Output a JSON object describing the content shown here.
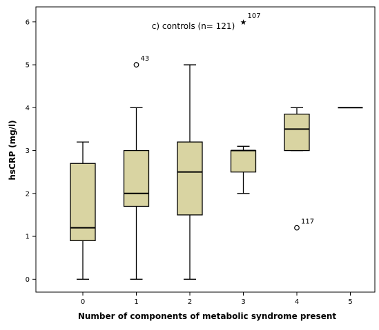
{
  "chart_data": {
    "type": "box",
    "title": "c) controls (n= 121)",
    "xlabel": "Number of components of metabolic syndrome present",
    "ylabel": "hsCRP (mg/l)",
    "categories": [
      "0",
      "1",
      "2",
      "3",
      "4",
      "5"
    ],
    "ylim": [
      -0.3,
      6.35
    ],
    "yticks": [
      0,
      1,
      2,
      3,
      4,
      5,
      6
    ],
    "ytick_labels": [
      "0",
      "1",
      "2",
      "3",
      "4",
      "5",
      "6"
    ],
    "grid": false,
    "box_color": "#d9d4a2",
    "boxes": [
      {
        "category": "0",
        "min": 0,
        "q1": 0.9,
        "median": 1.2,
        "q3": 2.7,
        "max": 3.2
      },
      {
        "category": "1",
        "min": 0,
        "q1": 1.7,
        "median": 2.0,
        "q3": 3.0,
        "max": 4.0
      },
      {
        "category": "2",
        "min": 0,
        "q1": 1.5,
        "median": 2.5,
        "q3": 3.2,
        "max": 5.0
      },
      {
        "category": "3",
        "min": 2.0,
        "q1": 2.5,
        "median": 3.0,
        "q3": 3.0,
        "max": 3.1
      },
      {
        "category": "4",
        "min": 3.0,
        "q1": 3.0,
        "median": 3.5,
        "q3": 3.85,
        "max": 4.0
      },
      {
        "category": "5",
        "min": 4.0,
        "q1": 4.0,
        "median": 4.0,
        "q3": 4.0,
        "max": 4.0
      }
    ],
    "outliers": [
      {
        "category": "1",
        "y": 5.0,
        "label": "43",
        "marker": "circle"
      },
      {
        "category": "3",
        "y": 6.0,
        "label": "107",
        "marker": "star"
      },
      {
        "category": "4",
        "y": 1.2,
        "label": "117",
        "marker": "circle"
      }
    ]
  }
}
